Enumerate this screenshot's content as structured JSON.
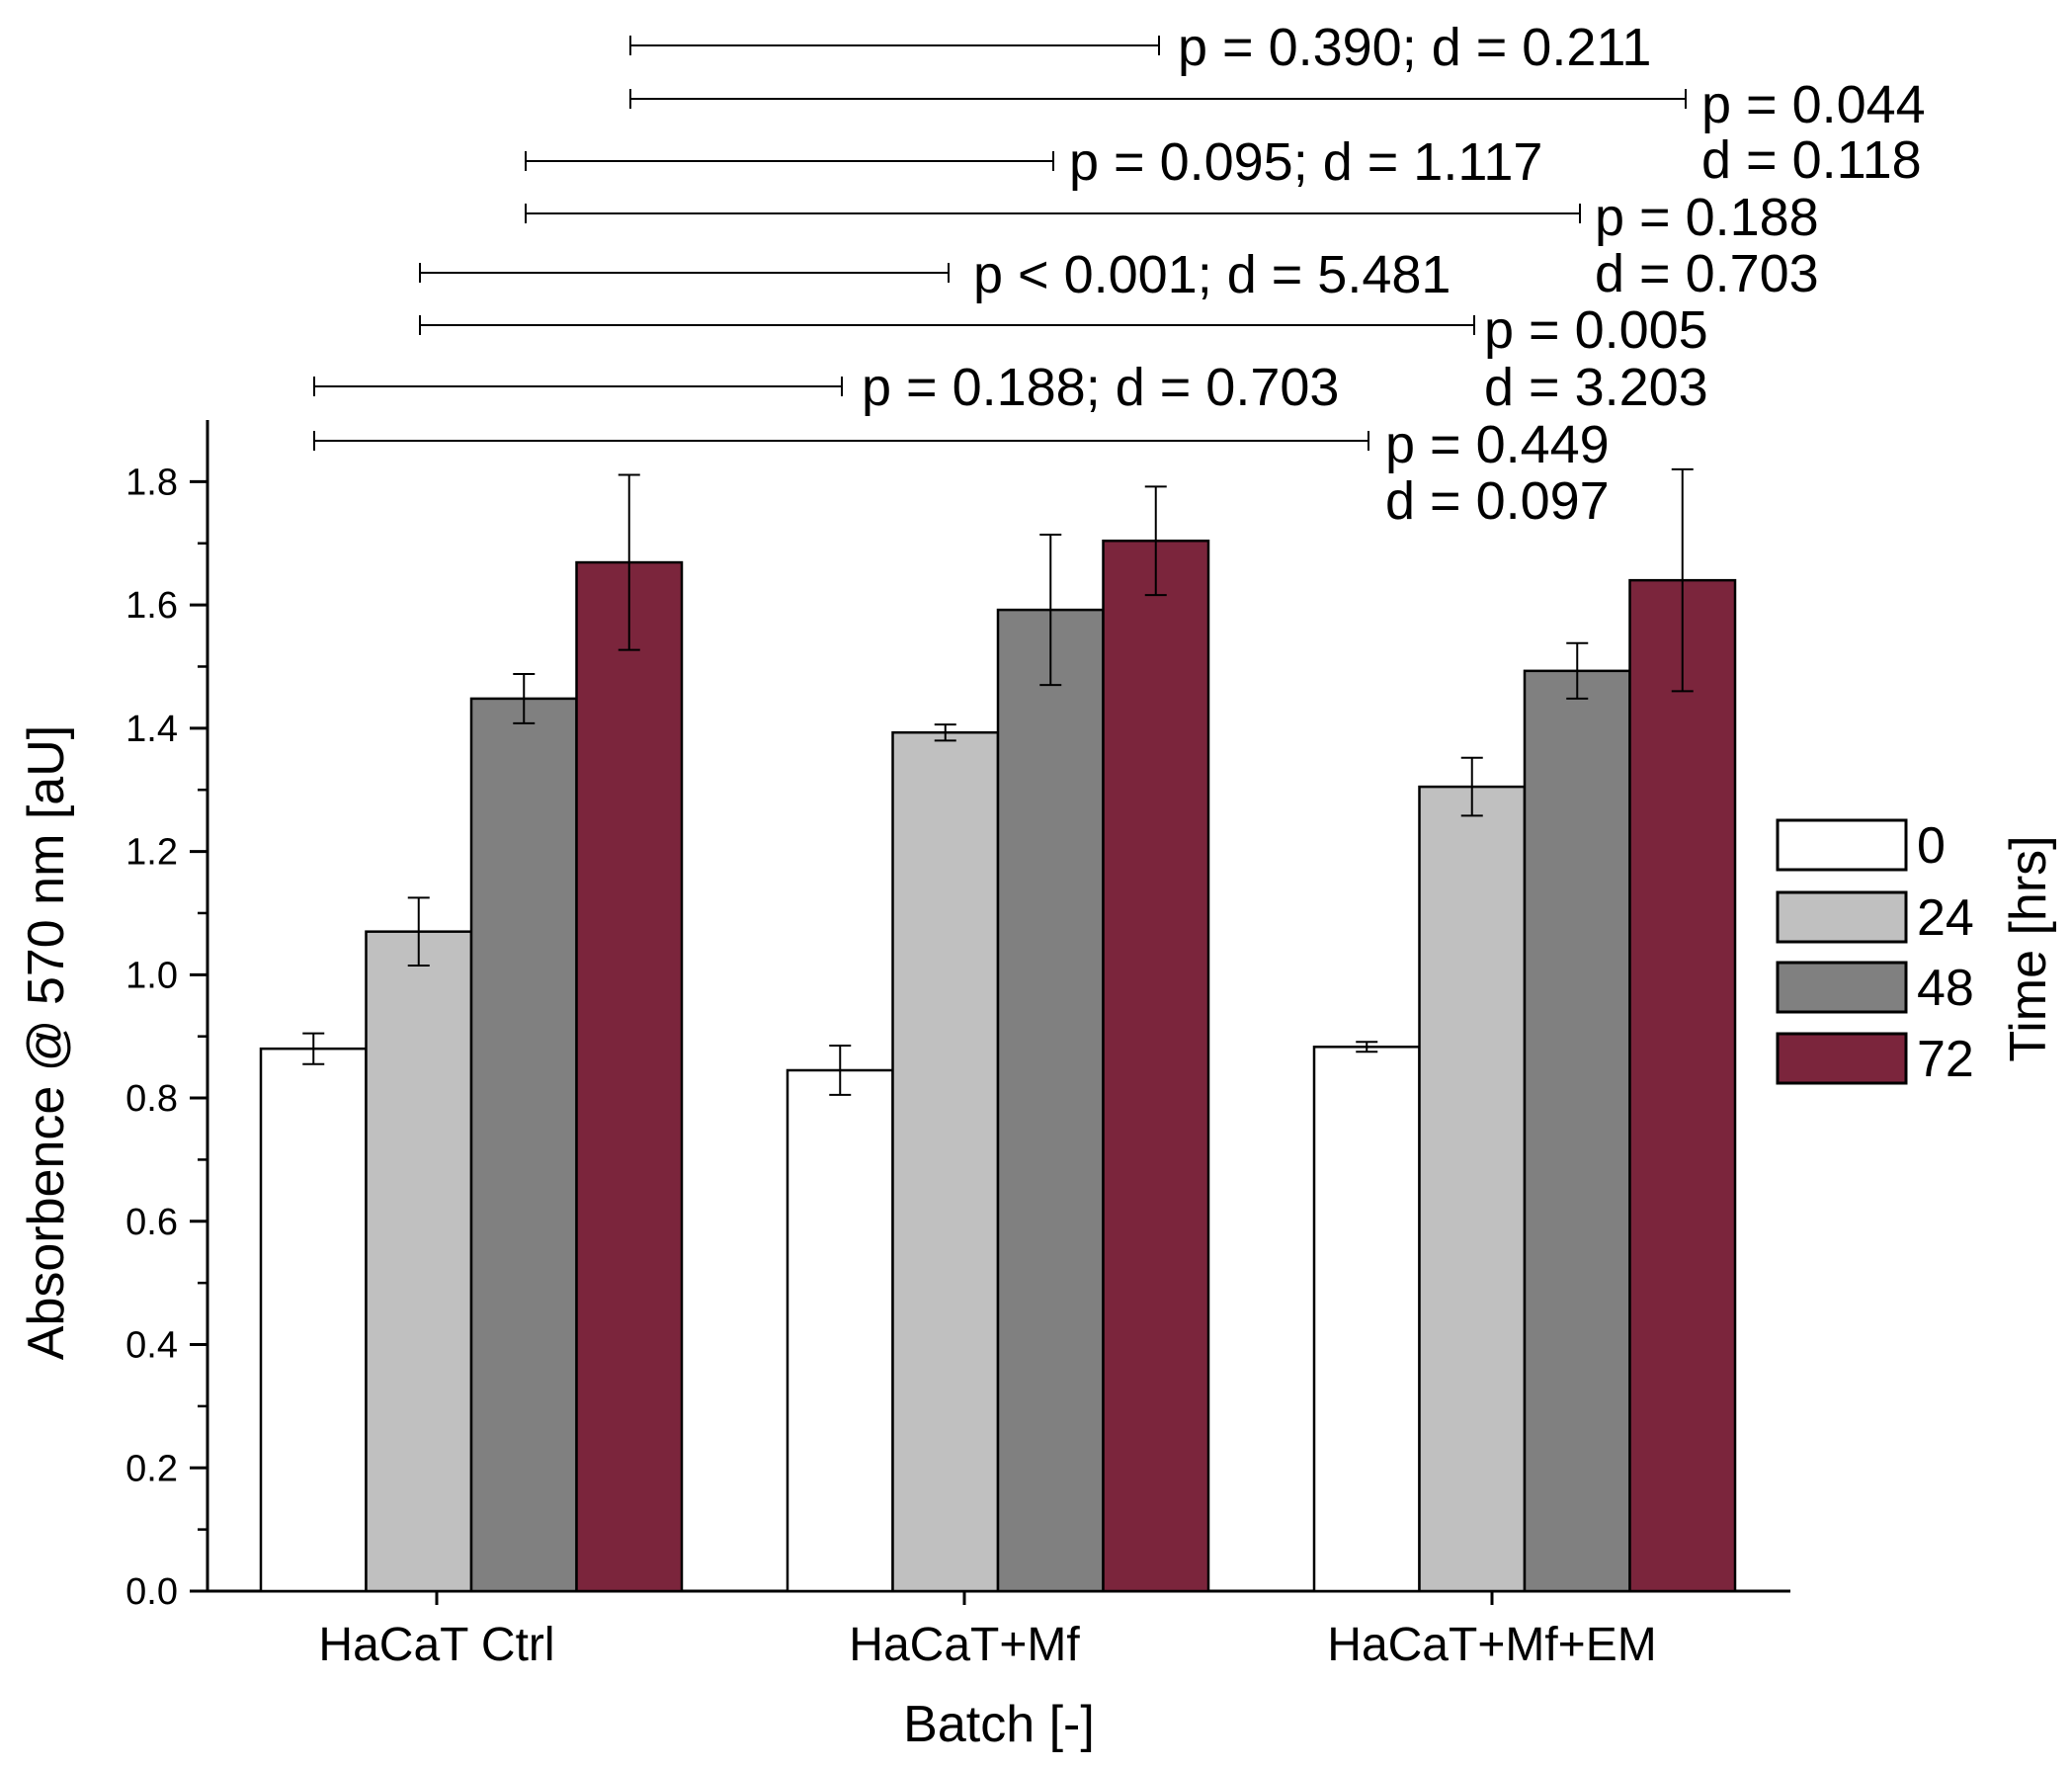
{
  "chart_data": {
    "type": "bar",
    "xlabel": "Batch [-]",
    "ylabel": "Absorbence @ 570 nm [aU]",
    "ylim": [
      0,
      1.9
    ],
    "yticks": [
      "0.0",
      "0.2",
      "0.4",
      "0.6",
      "0.8",
      "1.0",
      "1.2",
      "1.4",
      "1.6",
      "1.8"
    ],
    "categories": [
      "HaCaT Ctrl",
      "HaCaT+Mf",
      "HaCaT+Mf+EM"
    ],
    "legend_title": "Time [hrs]",
    "legend_position": "right",
    "grid": false,
    "series": [
      {
        "name": "0",
        "color": "#ffffff",
        "values": [
          0.88,
          0.845,
          0.883
        ],
        "errors": [
          0.025,
          0.04,
          0.008
        ]
      },
      {
        "name": "24",
        "color": "#c0c0c0",
        "values": [
          1.07,
          1.393,
          1.305
        ],
        "errors": [
          0.055,
          0.013,
          0.047
        ]
      },
      {
        "name": "48",
        "color": "#808080",
        "values": [
          1.448,
          1.592,
          1.493
        ],
        "errors": [
          0.04,
          0.122,
          0.045
        ]
      },
      {
        "name": "72",
        "color": "#7b253c",
        "values": [
          1.669,
          1.704,
          1.64
        ],
        "errors": [
          0.142,
          0.088,
          0.18
        ]
      }
    ],
    "annotations": [
      {
        "text": "p = 0.390; d = 0.211"
      },
      {
        "text": "p = 0.044",
        "text2": "d = 0.118"
      },
      {
        "text": "p = 0.095; d = 1.117"
      },
      {
        "text": "p = 0.188",
        "text2": "d = 0.703"
      },
      {
        "text": "p < 0.001; d = 5.481"
      },
      {
        "text": "p = 0.005",
        "text2": "d = 3.203"
      },
      {
        "text": "p = 0.188; d = 0.703"
      },
      {
        "text": "p =  0.449",
        "text2": "d = 0.097"
      }
    ]
  }
}
